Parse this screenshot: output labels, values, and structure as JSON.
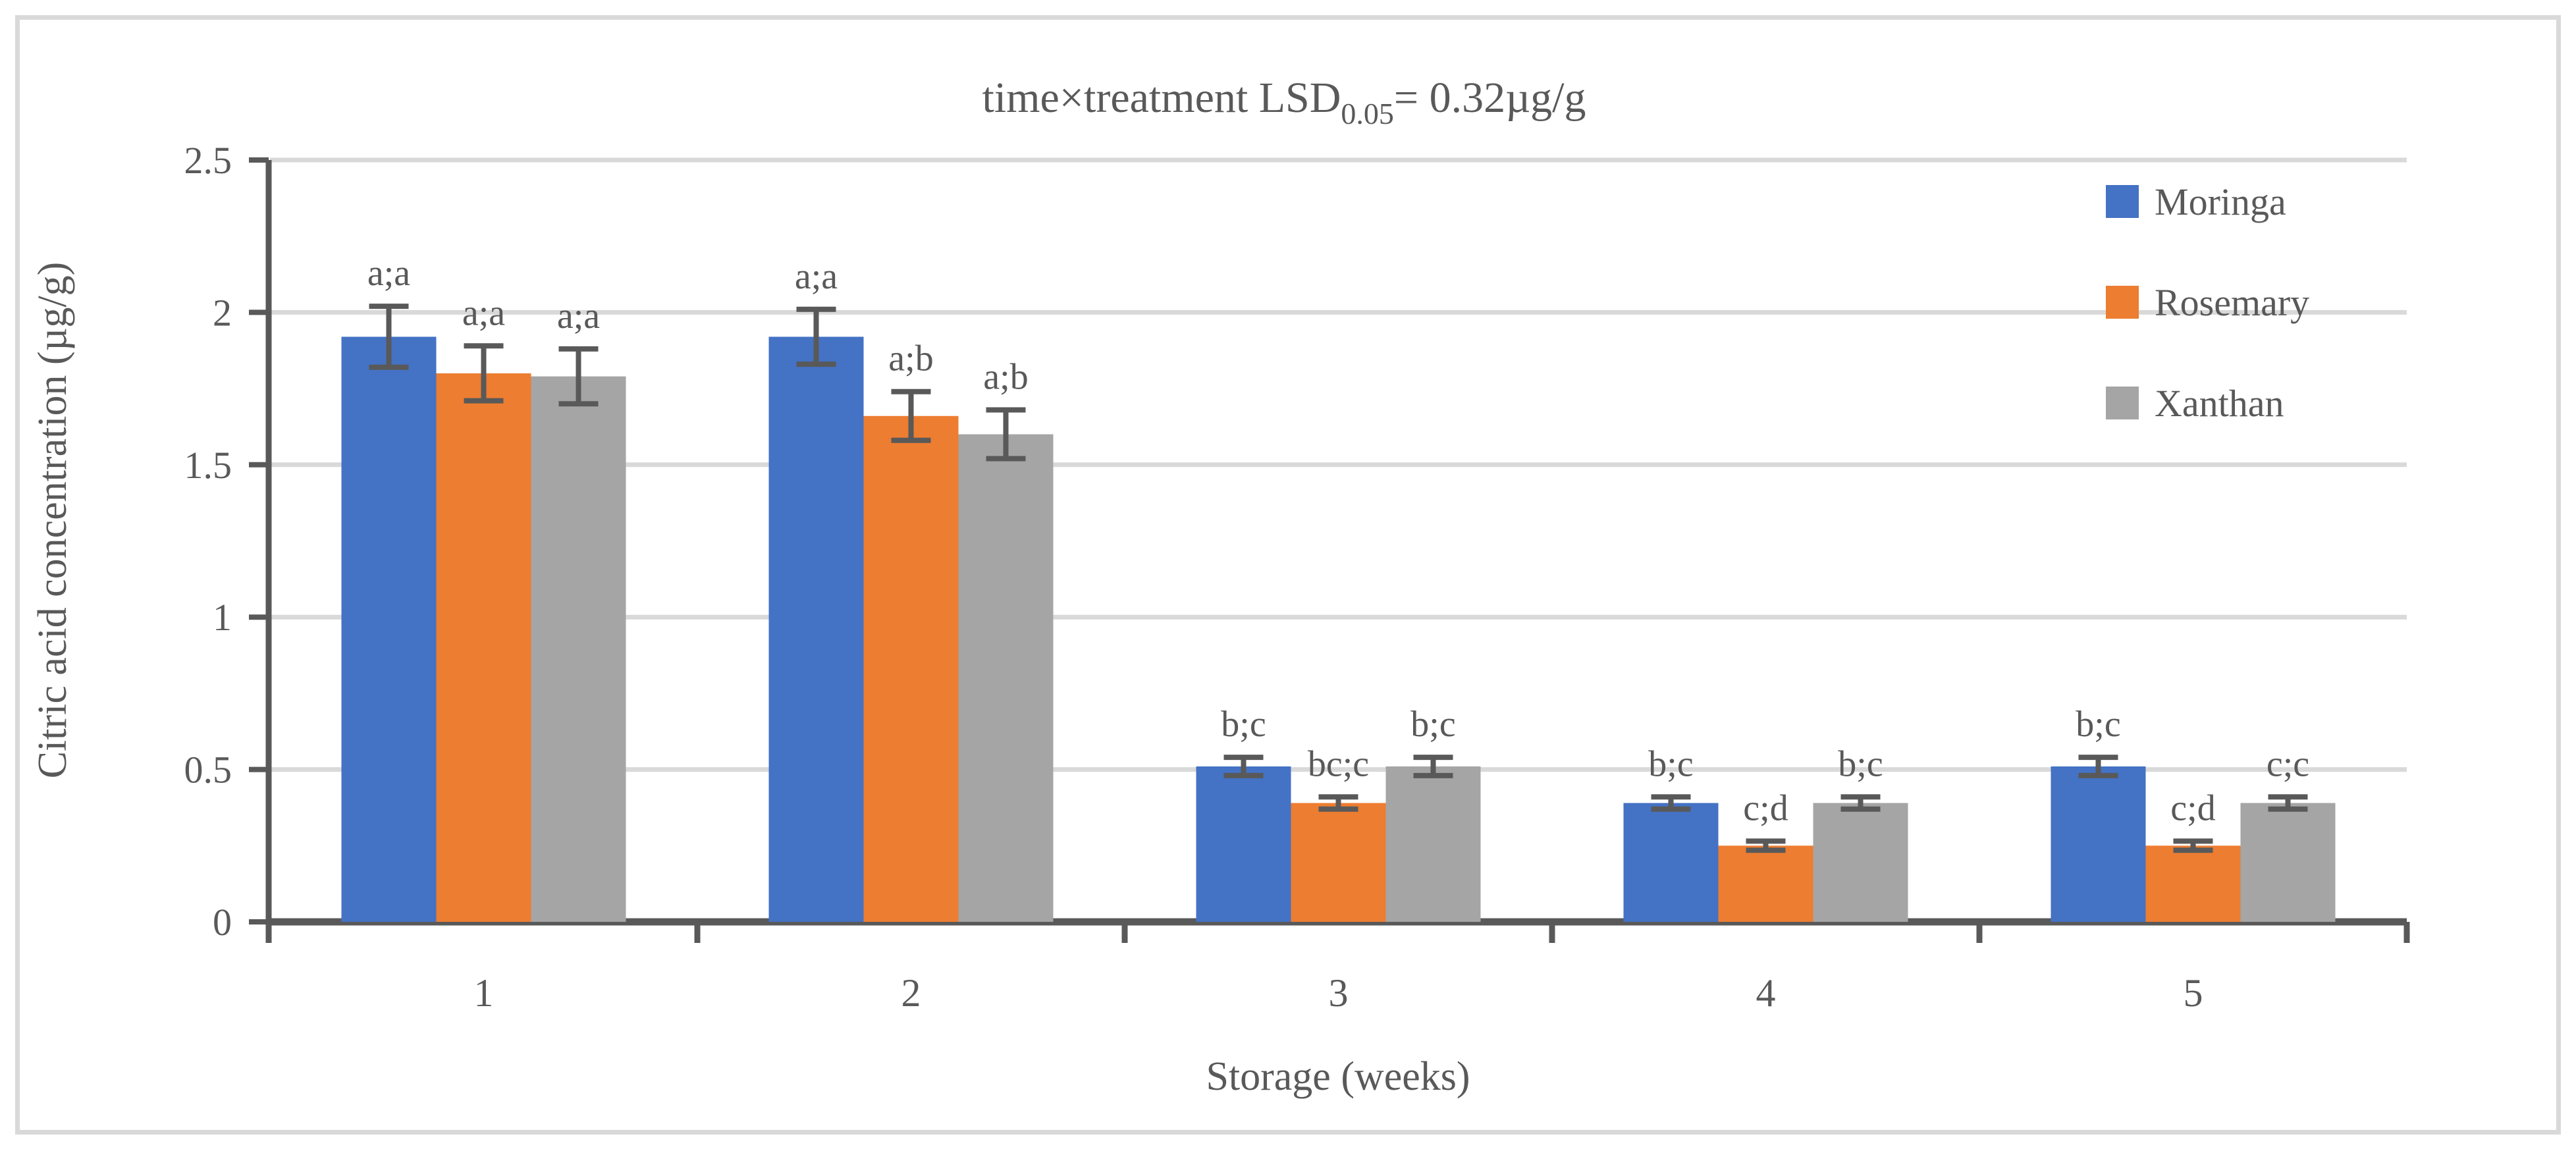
{
  "figure": {
    "frame_color": "#D9D9D9",
    "background_color": "#FFFFFF"
  },
  "chart_data": {
    "type": "bar",
    "title": {
      "prefix": "time×treatment LSD",
      "subscript": "0.05",
      "suffix": "= 0.32µg/g"
    },
    "xlabel": "Storage (weeks)",
    "ylabel": "Citric acid concentration (µg/g)",
    "categories": [
      "1",
      "2",
      "3",
      "4",
      "5"
    ],
    "series": [
      {
        "name": "Moringa",
        "color": "#4472C4",
        "values": [
          1.92,
          1.92,
          0.51,
          0.39,
          0.51
        ],
        "errors": [
          0.1,
          0.09,
          0.03,
          0.02,
          0.03
        ],
        "labels": [
          "a;a",
          "a;a",
          "b;c",
          "b;c",
          "b;c"
        ]
      },
      {
        "name": "Rosemary",
        "color": "#ED7D31",
        "values": [
          1.8,
          1.66,
          0.39,
          0.25,
          0.25
        ],
        "errors": [
          0.09,
          0.08,
          0.02,
          0.015,
          0.015
        ],
        "labels": [
          "a;a",
          "a;b",
          "bc;c",
          "c;d",
          "c;d"
        ]
      },
      {
        "name": "Xanthan",
        "color": "#A5A5A5",
        "values": [
          1.79,
          1.6,
          0.51,
          0.39,
          0.39
        ],
        "errors": [
          0.09,
          0.08,
          0.03,
          0.02,
          0.02
        ],
        "labels": [
          "a;a",
          "a;b",
          "b;c",
          "b;c",
          "c;c"
        ]
      }
    ],
    "yticks": [
      {
        "value": 0,
        "label": "0"
      },
      {
        "value": 0.5,
        "label": "0.5"
      },
      {
        "value": 1,
        "label": "1"
      },
      {
        "value": 1.5,
        "label": "1.5"
      },
      {
        "value": 2,
        "label": "2"
      },
      {
        "value": 2.5,
        "label": "2.5"
      }
    ],
    "ylim": [
      0,
      2.5
    ],
    "grid": true,
    "legend_position": "top-right-inside",
    "colors": {
      "axis": "#595959",
      "grid": "#D9D9D9",
      "text": "#595959",
      "error_bar": "#595959"
    }
  }
}
